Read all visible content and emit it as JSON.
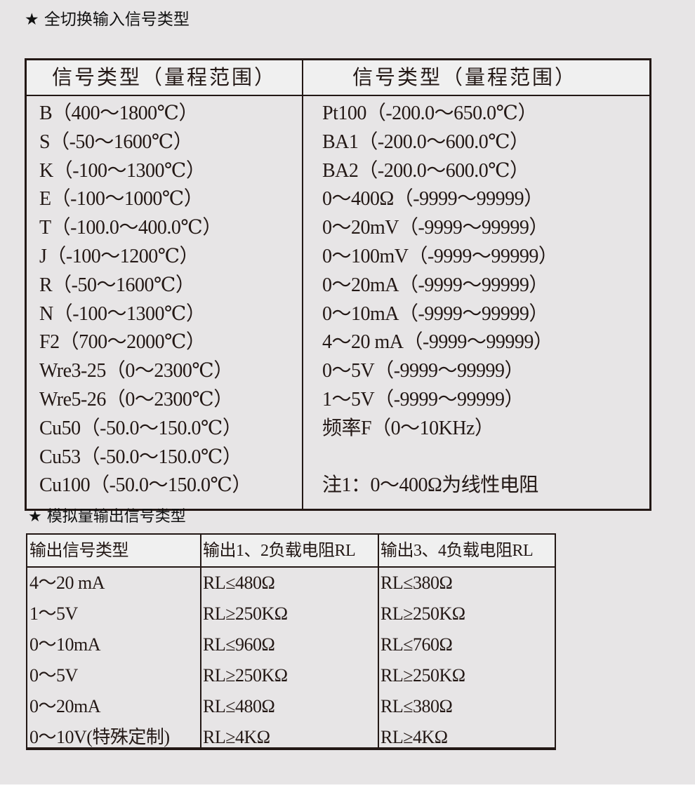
{
  "section1_title": "★ 全切换输入信号类型",
  "input_table": {
    "headers": [
      "信号类型（量程范围）",
      "信号类型（量程范围）"
    ],
    "left": [
      "B（400～1800℃）",
      "S（-50～1600℃）",
      "K（-100～1300℃）",
      "E（-100～1000℃）",
      "T（-100.0～400.0℃）",
      "J（-100～1200℃）",
      "R（-50～1600℃）",
      "N（-100～1300℃）",
      "F2（700～2000℃）",
      "Wre3-25（0～2300℃）",
      "Wre5-26（0～2300℃）",
      "Cu50（-50.0～150.0℃）",
      "Cu53（-50.0～150.0℃）",
      "Cu100（-50.0～150.0℃）"
    ],
    "right": [
      "Pt100（-200.0～650.0℃）",
      "BA1（-200.0～600.0℃）",
      "BA2（-200.0～600.0℃）",
      "0～400Ω（-9999～99999）",
      "0～20mV（-9999～99999）",
      "0～100mV（-9999～99999）",
      "0～20mA（-9999～99999）",
      "0～10mA（-9999～99999）",
      "4～20 mA（-9999～99999）",
      "0～5V（-9999～99999）",
      "1～5V（-9999～99999）",
      "频率F（0～10KHz）",
      "",
      "注1：0～400Ω为线性电阻"
    ]
  },
  "section2_title": "★ 模拟量输出信号类型",
  "output_table": {
    "headers": [
      "输出信号类型",
      "输出1、2负载电阻RL",
      "输出3、4负载电阻RL"
    ],
    "rows": [
      [
        "4～20 mA",
        "RL≤480Ω",
        "RL≤380Ω"
      ],
      [
        "1～5V",
        "RL≥250KΩ",
        "RL≥250KΩ"
      ],
      [
        "0～10mA",
        "RL≤960Ω",
        "RL≤760Ω"
      ],
      [
        "0～5V",
        "RL≥250KΩ",
        "RL≥250KΩ"
      ],
      [
        "0～20mA",
        "RL≤480Ω",
        "RL≤380Ω"
      ],
      [
        "0～10V(特殊定制)",
        "RL≥4KΩ",
        "RL≥4KΩ"
      ]
    ]
  }
}
